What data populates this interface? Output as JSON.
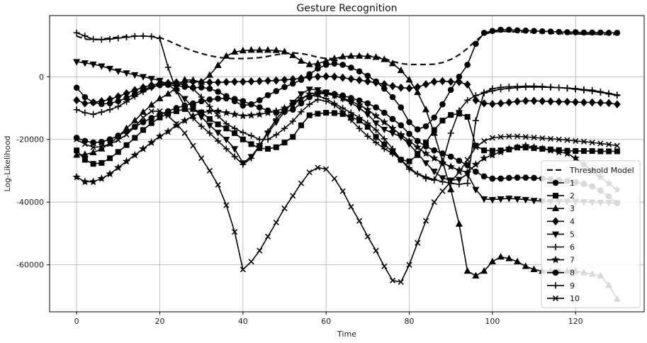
{
  "chart_data": {
    "type": "line",
    "title": "Gesture Recognition",
    "xlabel": "Time",
    "ylabel": "Log-Likelihood",
    "xlim": [
      -6.5,
      136.5
    ],
    "ylim": [
      -75000,
      19500
    ],
    "xticks": [
      0,
      20,
      40,
      60,
      80,
      100,
      120
    ],
    "yticks": [
      0,
      -20000,
      -40000,
      -60000
    ],
    "ytick_labels": [
      "0",
      "-20000",
      "-40000",
      "-60000"
    ],
    "grid": true,
    "legend_position": "lower-right",
    "legend": [
      "Threshold Model",
      "1",
      "2",
      "3",
      "4",
      "5",
      "6",
      "7",
      "8",
      "9",
      "10"
    ],
    "x": [
      0,
      2,
      4,
      6,
      8,
      10,
      12,
      14,
      16,
      18,
      20,
      22,
      24,
      26,
      28,
      30,
      32,
      34,
      36,
      38,
      40,
      42,
      44,
      46,
      48,
      50,
      52,
      54,
      56,
      58,
      60,
      62,
      64,
      66,
      68,
      70,
      72,
      74,
      76,
      78,
      80,
      82,
      84,
      86,
      88,
      90,
      92,
      94,
      96,
      98,
      100,
      102,
      104,
      106,
      108,
      110,
      112,
      114,
      116,
      118,
      120,
      122,
      124,
      126,
      128,
      130
    ],
    "series": [
      {
        "name": "Threshold Model",
        "style": "dashed",
        "marker": "none",
        "color": "#111111",
        "values": [
          13000,
          12000,
          11800,
          12000,
          12300,
          12600,
          12900,
          13000,
          13000,
          12900,
          12500,
          11500,
          10300,
          9200,
          8200,
          7400,
          6700,
          6200,
          5900,
          5800,
          5800,
          5900,
          6100,
          6500,
          7000,
          7400,
          7600,
          7400,
          6900,
          6200,
          5800,
          5800,
          6000,
          6400,
          6700,
          6700,
          6400,
          5800,
          4900,
          4200,
          3900,
          3900,
          3900,
          4000,
          4500,
          5500,
          7000,
          9000,
          11500,
          13500,
          14300,
          14500,
          14400,
          14300,
          14200,
          14100,
          14000,
          13900,
          13800,
          13700,
          13700,
          13600,
          13600,
          13500,
          13500,
          13500
        ]
      },
      {
        "name": "1",
        "style": "solid",
        "marker": "circle",
        "color": "#000000",
        "values": [
          -3500,
          -6500,
          -8200,
          -8700,
          -8500,
          -7800,
          -6800,
          -5500,
          -4200,
          -3200,
          -2700,
          -2600,
          -2800,
          -3200,
          -3500,
          -3400,
          -3800,
          -4800,
          -6200,
          -7800,
          -9200,
          -8800,
          -7500,
          -5900,
          -4600,
          -3300,
          -2200,
          -1000,
          800,
          2600,
          3800,
          4200,
          3800,
          2900,
          1700,
          300,
          -1500,
          -3800,
          -6500,
          -9800,
          -14500,
          -16800,
          -15800,
          -13000,
          -8800,
          -4200,
          0,
          3800,
          10500,
          14000,
          14600,
          15000,
          15000,
          14800,
          14700,
          14600,
          14500,
          14400,
          14300,
          14200,
          14200,
          14100,
          14100,
          14100,
          14000,
          14000
        ]
      },
      {
        "name": "2",
        "style": "solid",
        "marker": "square",
        "color": "#000000",
        "values": [
          -23500,
          -26500,
          -27800,
          -27500,
          -26000,
          -24000,
          -21800,
          -19500,
          -17000,
          -14800,
          -13000,
          -11800,
          -11000,
          -10300,
          -10300,
          -11400,
          -13500,
          -15200,
          -16500,
          -18000,
          -20000,
          -21500,
          -22800,
          -23000,
          -22500,
          -21000,
          -19200,
          -15500,
          -12300,
          -11800,
          -11500,
          -11600,
          -11900,
          -12800,
          -14000,
          -16000,
          -19200,
          -21600,
          -24000,
          -26500,
          -27000,
          -25000,
          -21000,
          -17000,
          -14000,
          -12200,
          -11800,
          -12800,
          -22000,
          -23500,
          -23600,
          -23500,
          -23200,
          -22600,
          -22600,
          -22800,
          -23000,
          -23200,
          -23400,
          -23600,
          -23700,
          -23700,
          -23700,
          -23800,
          -23800,
          -23800
        ]
      },
      {
        "name": "3",
        "style": "solid",
        "marker": "triangle-up",
        "color": "#000000",
        "values": [
          -25000,
          -24800,
          -24200,
          -23000,
          -21300,
          -19000,
          -16500,
          -14000,
          -11300,
          -9000,
          -7000,
          -5500,
          -3500,
          -1000,
          -1100,
          -1700,
          500,
          3600,
          6600,
          7900,
          8300,
          8500,
          8500,
          8500,
          8400,
          8000,
          6800,
          5000,
          3900,
          4200,
          5000,
          5800,
          6400,
          6600,
          6600,
          6500,
          6200,
          5500,
          4200,
          2000,
          -1000,
          -5000,
          -10500,
          -18000,
          -27000,
          -36000,
          -47000,
          -62000,
          -63500,
          -62000,
          -59000,
          -57500,
          -58000,
          -59000,
          -60500,
          -61500,
          -62000,
          -62000,
          -62000,
          -62000,
          -62000,
          -62500,
          -63000,
          -63500,
          -66500,
          -71000
        ]
      },
      {
        "name": "4",
        "style": "solid",
        "marker": "diamond",
        "color": "#000000",
        "values": [
          -7500,
          -8500,
          -8200,
          -7800,
          -7200,
          -6300,
          -5300,
          -4300,
          -3400,
          -2700,
          -2200,
          -2000,
          -1800,
          -1700,
          -1600,
          -1700,
          -1800,
          -1800,
          -1700,
          -1600,
          -1600,
          -1500,
          -1400,
          -1300,
          -1200,
          -1000,
          -800,
          -500,
          -200,
          0,
          100,
          0,
          -300,
          -700,
          -1100,
          -1500,
          -1900,
          -2400,
          -3000,
          -3500,
          -3700,
          -3300,
          -2400,
          -1600,
          -1400,
          -1600,
          -1700,
          -2500,
          -7500,
          -8500,
          -8700,
          -8500,
          -8200,
          -7900,
          -7700,
          -7700,
          -7800,
          -7900,
          -8000,
          -8000,
          -8100,
          -8200,
          -8200,
          -8300,
          -8400,
          -8800
        ]
      },
      {
        "name": "5",
        "style": "solid",
        "marker": "triangle-down",
        "color": "#000000",
        "values": [
          4800,
          4400,
          4000,
          3400,
          2600,
          1800,
          1200,
          600,
          0,
          -600,
          -1200,
          -2500,
          -4500,
          -7000,
          -9800,
          -12800,
          -15500,
          -17800,
          -20000,
          -23000,
          -27500,
          -25500,
          -22000,
          -18000,
          -14500,
          -11200,
          -8200,
          -5500,
          -4000,
          -4200,
          -5000,
          -6000,
          -7000,
          -8300,
          -10000,
          -12000,
          -14800,
          -16800,
          -18000,
          -19200,
          -21500,
          -24500,
          -27500,
          -30200,
          -32300,
          -33000,
          -32800,
          -31000,
          -36000,
          -39000,
          -39200,
          -39000,
          -38800,
          -39000,
          -39200,
          -39500,
          -39700,
          -39800,
          -39800,
          -39800,
          -39800,
          -39900,
          -40000,
          -40100,
          -40200,
          -40300
        ]
      },
      {
        "name": "6",
        "style": "solid",
        "marker": "plus",
        "color": "#000000",
        "values": [
          -10500,
          -11500,
          -12000,
          -11300,
          -10500,
          -9500,
          -8000,
          -6300,
          -4800,
          -3500,
          -2600,
          -2200,
          -2200,
          -2500,
          -3800,
          -6500,
          -9500,
          -12500,
          -15000,
          -16500,
          -17800,
          -18800,
          -20000,
          -20000,
          -18500,
          -16500,
          -14200,
          -11200,
          -8800,
          -7300,
          -7800,
          -9000,
          -11000,
          -13800,
          -16500,
          -19000,
          -21000,
          -23000,
          -24500,
          -26500,
          -29000,
          -31000,
          -32500,
          -33000,
          -27500,
          -18000,
          -10800,
          -7500,
          -6000,
          -5200,
          -4500,
          -4000,
          -3700,
          -3500,
          -3300,
          -3300,
          -3300,
          -3400,
          -3500,
          -3600,
          -3800,
          -4100,
          -4300,
          -4800,
          -5300,
          -5800
        ]
      },
      {
        "name": "7",
        "style": "solid",
        "marker": "star",
        "color": "#000000",
        "values": [
          -32000,
          -33500,
          -33500,
          -32500,
          -31000,
          -29000,
          -27000,
          -25000,
          -23000,
          -21000,
          -19000,
          -17500,
          -15500,
          -14000,
          -12500,
          -11500,
          -11000,
          -11000,
          -11500,
          -12000,
          -12500,
          -12300,
          -12000,
          -11500,
          -11000,
          -10000,
          -9000,
          -7000,
          -5500,
          -5200,
          -5500,
          -6000,
          -6800,
          -7800,
          -9000,
          -10500,
          -12500,
          -14500,
          -16500,
          -18500,
          -20500,
          -22500,
          -24500,
          -26000,
          -27500,
          -28700,
          -29800,
          -30500,
          -28000,
          -26000,
          -25000,
          -24000,
          -23000,
          -22500,
          -22000,
          -22500,
          -23000,
          -23500,
          -24000,
          -24500,
          -26000,
          -28000,
          -30000,
          -32000,
          -34000,
          -36000
        ]
      },
      {
        "name": "8",
        "style": "solid",
        "marker": "octagon",
        "color": "#000000",
        "values": [
          -19500,
          -20500,
          -21000,
          -20800,
          -20000,
          -18800,
          -17500,
          -16000,
          -14500,
          -13200,
          -12000,
          -11000,
          -10000,
          -9200,
          -8500,
          -7800,
          -7300,
          -7000,
          -6900,
          -7100,
          -7800,
          -8800,
          -9800,
          -10800,
          -11500,
          -11200,
          -10500,
          -8500,
          -6500,
          -5200,
          -5000,
          -5500,
          -6000,
          -6800,
          -7600,
          -8500,
          -9800,
          -11500,
          -13500,
          -15500,
          -18200,
          -20500,
          -22200,
          -23500,
          -24500,
          -25500,
          -26800,
          -28200,
          -30300,
          -31800,
          -32500,
          -32500,
          -32300,
          -32200,
          -32200,
          -32300,
          -32500,
          -32800,
          -33000,
          -33300,
          -33600,
          -34200,
          -35000,
          -36300,
          -38200,
          -40300
        ]
      },
      {
        "name": "9",
        "style": "solid",
        "marker": "plus",
        "color": "#000000",
        "values": [
          14000,
          13000,
          12000,
          11800,
          12000,
          12300,
          12600,
          12900,
          13000,
          12800,
          12200,
          3000,
          -4500,
          -9500,
          -13200,
          -15800,
          -18000,
          -20500,
          -23000,
          -25500,
          -28000,
          -26000,
          -22000,
          -17500,
          -13500,
          -10500,
          -8500,
          -6800,
          -6000,
          -6200,
          -7000,
          -8500,
          -10000,
          -11500,
          -13000,
          -14800,
          -17000,
          -19800,
          -23000,
          -26500,
          -29500,
          -31000,
          -32000,
          -32800,
          -33500,
          -34000,
          -34300,
          -34000,
          -14000,
          -5000,
          -3800,
          -3400,
          -3200,
          -3100,
          -3000,
          -3000,
          -3100,
          -3300,
          -3500,
          -3700,
          -4000,
          -4300,
          -4600,
          -5000,
          -5500,
          -6000
        ]
      },
      {
        "name": "10",
        "style": "solid",
        "marker": "x",
        "color": "#000000",
        "values": [
          -20000,
          -21500,
          -22500,
          -22300,
          -21500,
          -20200,
          -18500,
          -16000,
          -13000,
          -11000,
          -11000,
          -12500,
          -15000,
          -18000,
          -22000,
          -26000,
          -30000,
          -34500,
          -41000,
          -49500,
          -61500,
          -59000,
          -55500,
          -51000,
          -46500,
          -42000,
          -38000,
          -34000,
          -30500,
          -29000,
          -29500,
          -32500,
          -36500,
          -41500,
          -46000,
          -51000,
          -55500,
          -60500,
          -65000,
          -65500,
          -60000,
          -53000,
          -46000,
          -40000,
          -36500,
          -33500,
          -30500,
          -26500,
          -22500,
          -20500,
          -19500,
          -19200,
          -19000,
          -19000,
          -19200,
          -19400,
          -19600,
          -19800,
          -20000,
          -20200,
          -20500,
          -20700,
          -21000,
          -21300,
          -21600,
          -22000
        ]
      }
    ]
  }
}
